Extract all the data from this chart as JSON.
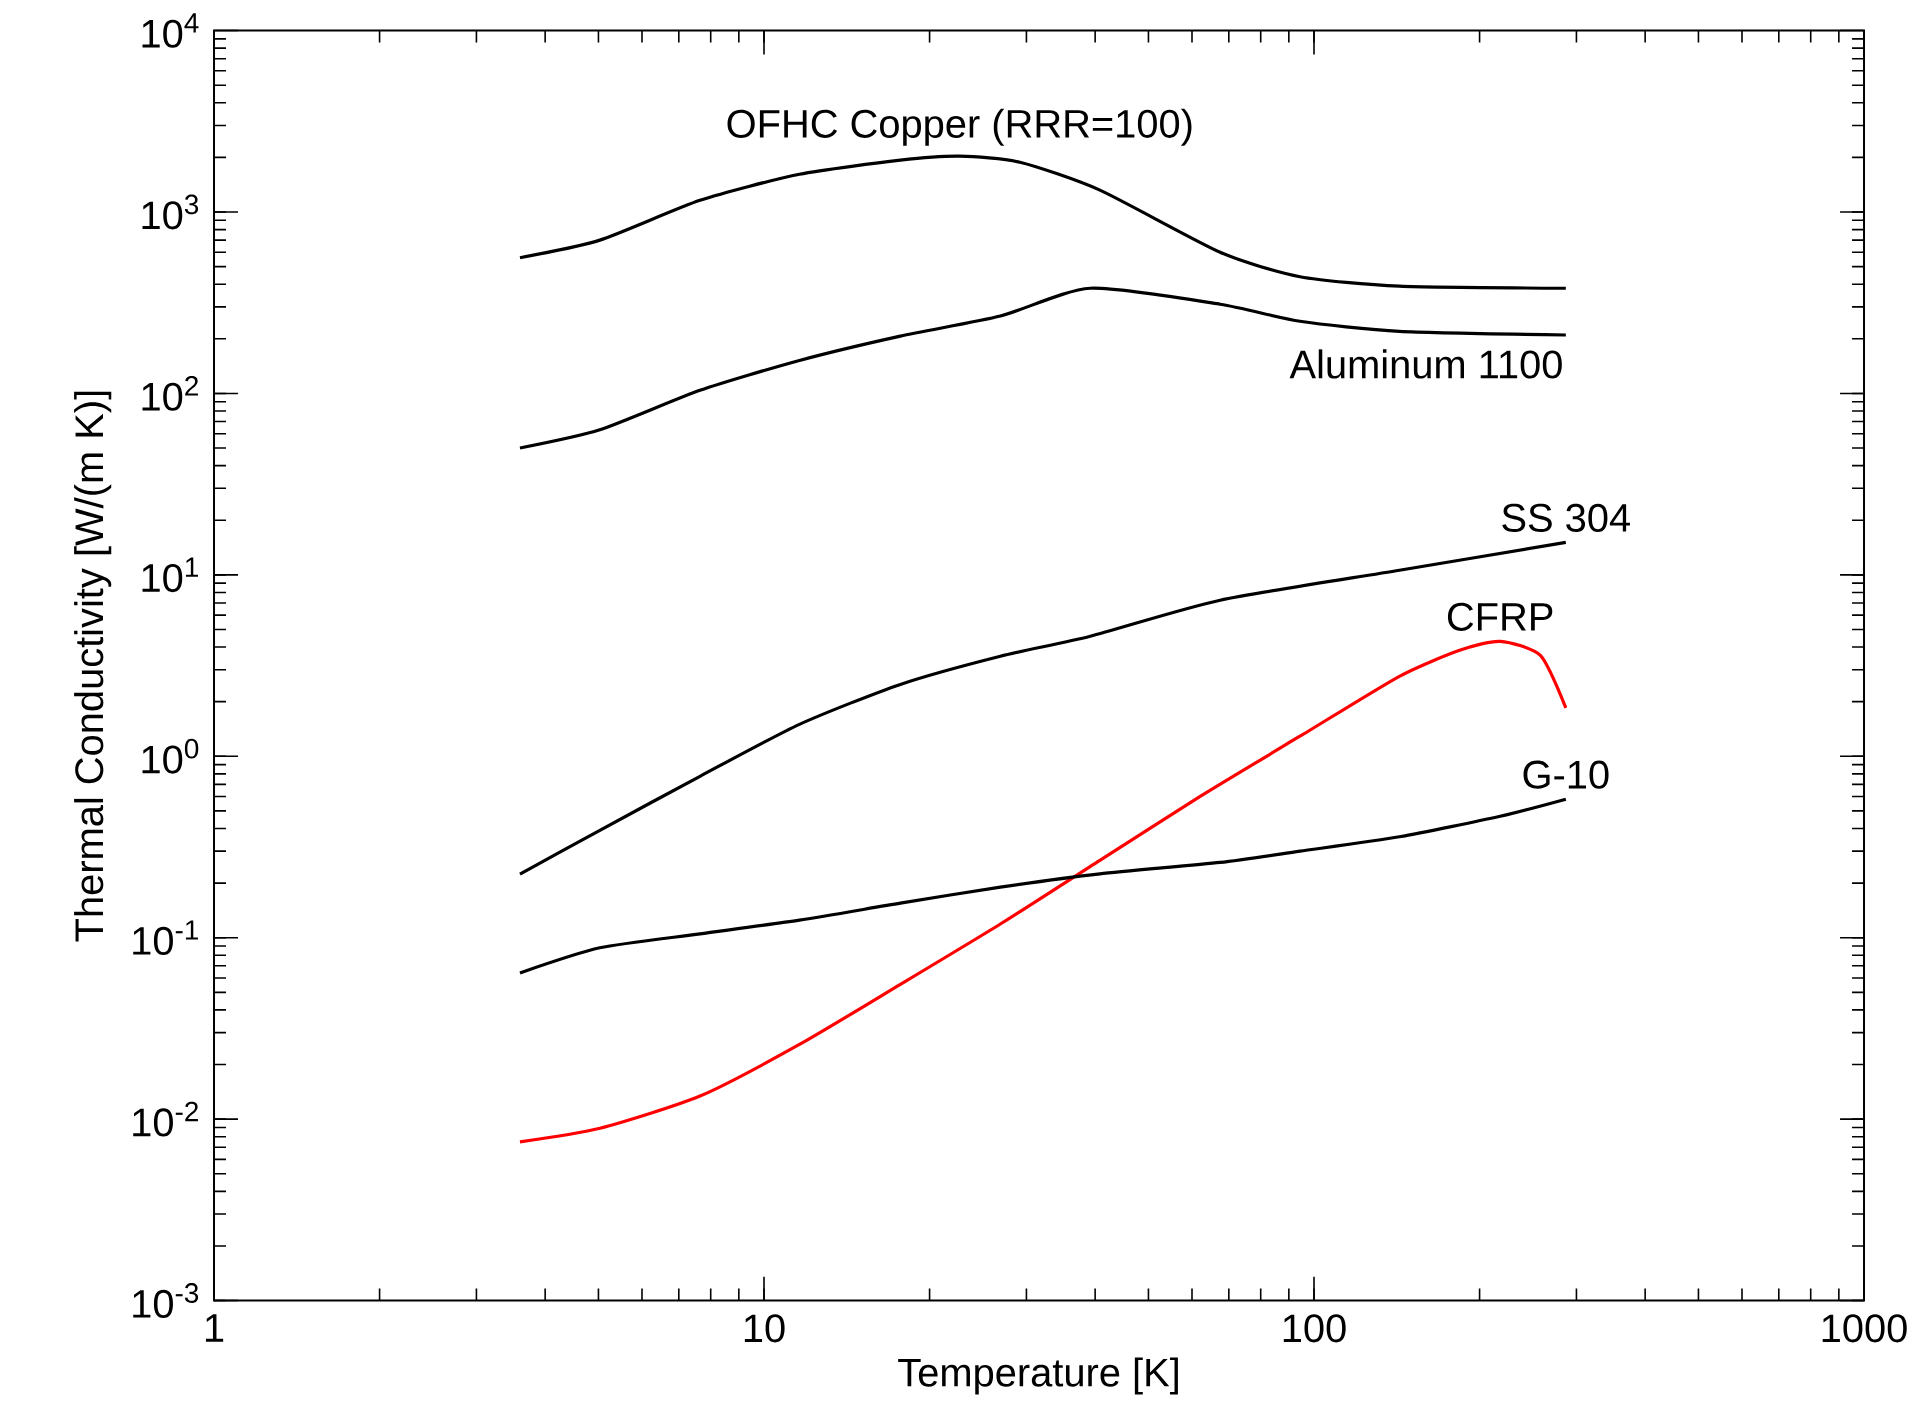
{
  "chart_data": {
    "type": "line",
    "xlabel": "Temperature [K]",
    "ylabel": "Thermal Conductivity [W/(m K)]",
    "log": "xy",
    "grid": false,
    "marker": "none",
    "line_style": "solid",
    "xlim": [
      1,
      1000
    ],
    "ylim": [
      0.001,
      10000
    ],
    "xticks": [
      1,
      10,
      100,
      1000
    ],
    "yticks": [
      {
        "value": 0.001,
        "label": "10$^{-3}$"
      },
      {
        "value": 0.01,
        "label": "10$^{-2}$"
      },
      {
        "value": 0.1,
        "label": "10$^{-1}$"
      },
      {
        "value": 1,
        "label": "10$^{0}$"
      },
      {
        "value": 10,
        "label": "10$^{1}$"
      },
      {
        "value": 100,
        "label": "10$^{2}$"
      },
      {
        "value": 1000,
        "label": "10$^{3}$"
      },
      {
        "value": 10000,
        "label": "10$^{4}$"
      }
    ],
    "series": [
      {
        "name": "OFHC Copper (RRR=100)",
        "color": "#000000",
        "x": [
          3.6,
          5.03,
          7.65,
          11.6,
          17.7,
          22.7,
          29.2,
          40.8,
          67.5,
          94.3,
          143,
          287
        ],
        "values": [
          560,
          700,
          1160,
          1615,
          1930,
          2030,
          1880,
          1320,
          600,
          440,
          390,
          380
        ]
      },
      {
        "name": "Aluminum 1100",
        "color": "#000000",
        "x": [
          3.6,
          5.03,
          7.65,
          11.6,
          17.7,
          26.9,
          39.2,
          67.5,
          94.3,
          143,
          287
        ],
        "values": [
          50,
          63,
          104,
          152,
          207,
          267,
          380,
          310,
          250,
          220,
          210
        ]
      },
      {
        "name": "SS 304",
        "color": "#000000",
        "x": [
          3.6,
          5.03,
          7.65,
          11.6,
          17.7,
          26.9,
          39.2,
          67.5,
          143,
          287
        ],
        "values": [
          0.224,
          0.391,
          0.776,
          1.5,
          2.49,
          3.56,
          4.59,
          7.25,
          10.6,
          15.1
        ]
      },
      {
        "name": "CFRP",
        "color": "#ff0000",
        "x": [
          3.6,
          5.03,
          7.65,
          11.6,
          17.7,
          26.9,
          40.8,
          62.1,
          94.3,
          143,
          184,
          218,
          258,
          287
        ],
        "values": [
          0.0075,
          0.0089,
          0.0134,
          0.0258,
          0.0553,
          0.119,
          0.267,
          0.601,
          1.29,
          2.76,
          3.84,
          4.3,
          3.6,
          1.85
        ]
      },
      {
        "name": "G-10",
        "color": "#000000",
        "x": [
          3.6,
          5.03,
          7.65,
          11.6,
          17.7,
          26.9,
          40.8,
          67.5,
          94.3,
          143,
          218,
          287
        ],
        "values": [
          0.064,
          0.088,
          0.105,
          0.125,
          0.155,
          0.19,
          0.225,
          0.26,
          0.3,
          0.36,
          0.467,
          0.58
        ]
      }
    ]
  }
}
